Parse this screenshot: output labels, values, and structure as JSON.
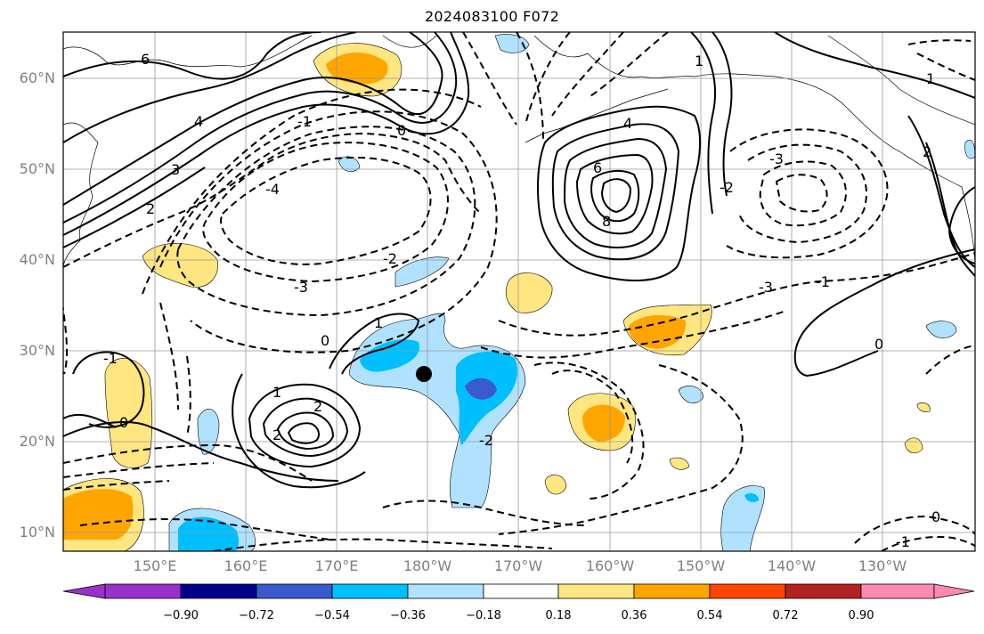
{
  "title": "2024083100 F072",
  "lat_labels": [
    "60°N",
    "50°N",
    "40°N",
    "30°N",
    "20°N",
    "10°N"
  ],
  "lon_labels": [
    "150°E",
    "160°E",
    "170°E",
    "180°W",
    "170°W",
    "160°W",
    "150°W",
    "140°W",
    "130°W"
  ],
  "colorbar": {
    "ticks": [
      "−0.90",
      "−0.72",
      "−0.54",
      "−0.36",
      "−0.18",
      "0.18",
      "0.36",
      "0.54",
      "0.72",
      "0.90"
    ],
    "colors": [
      "#9932cc",
      "#00008b",
      "#3a5bcd",
      "#00bfff",
      "#b0e2ff",
      "#ffffff",
      "#ffe680",
      "#ffa500",
      "#ff4500",
      "#b22222",
      "#ff88b0"
    ]
  },
  "contour_labels": [
    "6",
    "4",
    "3",
    "2",
    "0",
    "-1",
    "-2",
    "-3",
    "-4",
    "4",
    "6",
    "8",
    "-2",
    "-3",
    "-1",
    "1",
    "2",
    "1",
    "0",
    "-1",
    "0",
    "-2",
    "-3",
    "0",
    "-1",
    "1",
    "2",
    "1",
    "2",
    "0"
  ]
}
